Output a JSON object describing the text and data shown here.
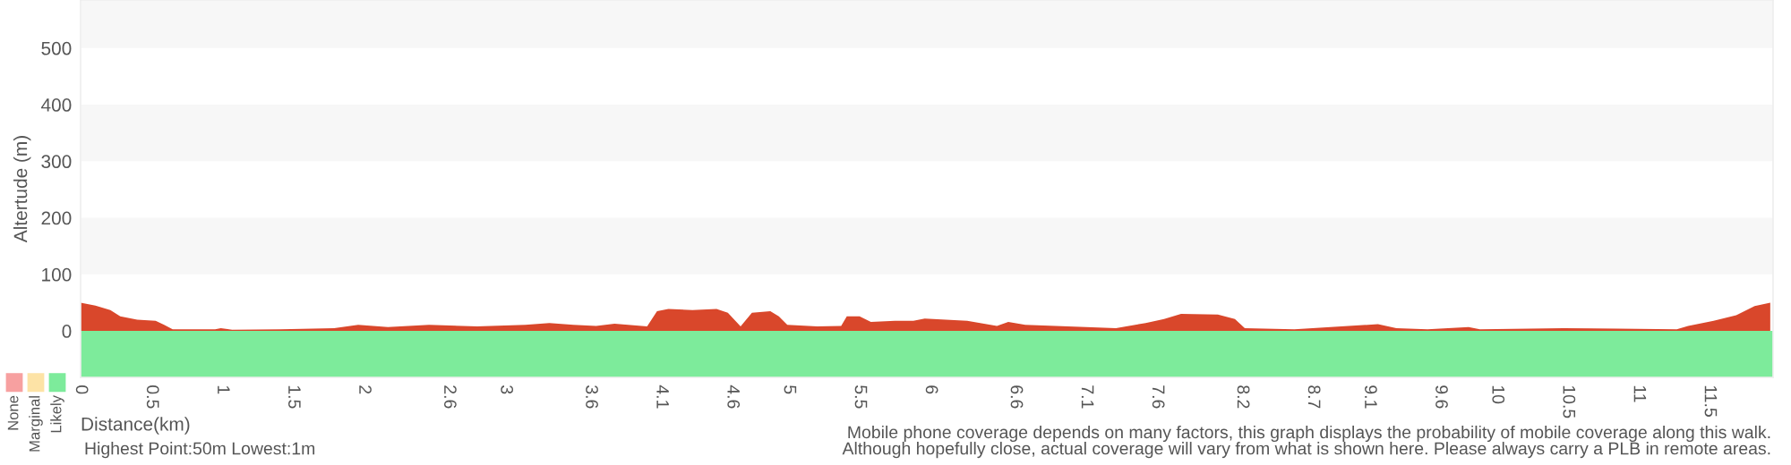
{
  "chart_data": {
    "type": "area",
    "ylabel": "Altertude (m)",
    "xlabel": "Distance(km)",
    "xlim": [
      0,
      11.95
    ],
    "ylim": [
      -82,
      585
    ],
    "yticks": [
      0,
      100,
      200,
      300,
      400,
      500
    ],
    "xticks": [
      0,
      0.5,
      1,
      1.5,
      2,
      2.6,
      3,
      3.6,
      4.1,
      4.6,
      5,
      5.5,
      6,
      6.6,
      7.1,
      7.6,
      8.2,
      8.7,
      9.1,
      9.6,
      10,
      10.5,
      11,
      11.5
    ],
    "series": [
      {
        "color": "#d9472b",
        "x": [
          0,
          0.105,
          0.21,
          0.28,
          0.4,
          0.53,
          0.59,
          0.65,
          0.95,
          0.99,
          1.07,
          1.41,
          1.79,
          1.96,
          2.17,
          2.46,
          2.8,
          3.14,
          3.31,
          3.48,
          3.64,
          3.77,
          4.0,
          4.07,
          4.15,
          4.32,
          4.49,
          4.57,
          4.66,
          4.74,
          4.87,
          4.93,
          4.99,
          5.2,
          5.37,
          5.41,
          5.5,
          5.58,
          5.75,
          5.88,
          5.96,
          6.26,
          6.47,
          6.55,
          6.67,
          7.1,
          7.31,
          7.52,
          7.65,
          7.77,
          8.03,
          8.15,
          8.22,
          8.57,
          9.16,
          9.29,
          9.51,
          9.8,
          9.88,
          10.47,
          10.85,
          11.27,
          11.35,
          11.53,
          11.69,
          11.82,
          11.93
        ],
        "values": [
          50,
          45,
          37,
          26,
          20,
          18,
          11,
          3,
          3,
          5,
          2,
          3,
          5,
          11,
          7,
          11,
          8,
          11,
          14,
          11,
          9,
          13,
          8,
          35,
          39,
          37,
          39,
          32,
          8,
          32,
          35,
          26,
          11,
          8,
          9,
          26,
          26,
          16,
          18,
          18,
          22,
          18,
          9,
          16,
          11,
          7,
          5,
          14,
          21,
          30,
          29,
          21,
          5,
          3,
          12,
          5,
          3,
          7,
          3,
          5,
          4,
          3,
          9,
          18,
          28,
          44,
          50
        ]
      }
    ],
    "bands": [
      {
        "axis": "y",
        "from": -82,
        "to": 0,
        "color": "#7deb9b"
      }
    ],
    "annotations": [
      "None",
      "Marginal",
      "Likely",
      "Highest Point:50m Lowest:1m",
      "Mobile phone coverage depends on many factors, this graph displays the probability of mobile coverage along this walk.\nAlthough hopefully close, actual coverage will vary from what is shown here. Please always carry a PLB in remote areas."
    ]
  }
}
